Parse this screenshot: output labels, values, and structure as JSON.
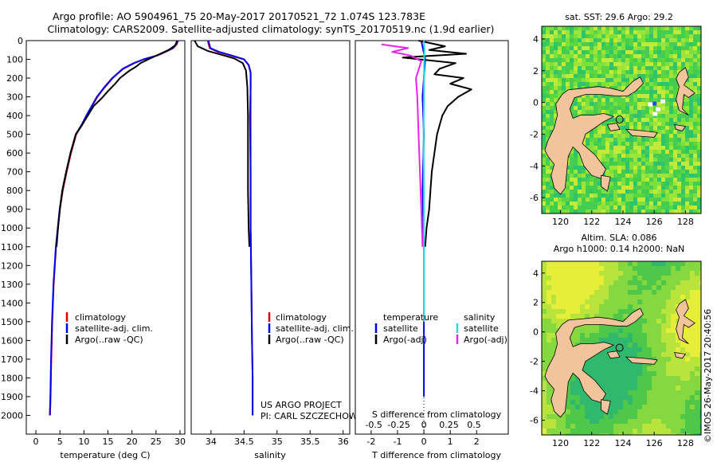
{
  "header": {
    "line1": "Argo profile: AO 5904961_75 20-May-2017 20170521_72 1.074S 123.783E",
    "line2": "Climatology: CARS2009. Satellite-adjusted climatology: synTS_20170519.nc (1.9d earlier)"
  },
  "colors": {
    "climatology": "#dd0000",
    "satellite": "#0000ee",
    "argo": "#000000",
    "salinity_satellite": "#22dddd",
    "salinity_argo": "#ee22ee",
    "land": "#f2c49c"
  },
  "chart_data": [
    {
      "id": "temperature",
      "type": "line",
      "xlabel": "temperature (deg C)",
      "ylabel": "",
      "xlim": [
        -2,
        31
      ],
      "ylim": [
        2100,
        0
      ],
      "xticks": [
        0,
        5,
        10,
        15,
        20,
        25,
        30
      ],
      "yticks": [
        0,
        100,
        200,
        300,
        400,
        500,
        600,
        700,
        800,
        900,
        1000,
        1100,
        1200,
        1300,
        1400,
        1500,
        1600,
        1700,
        1800,
        1900,
        2000
      ],
      "legend": [
        "climatology",
        "satellite-adj. clim.",
        "Argo(..raw -QC)"
      ],
      "series": [
        {
          "name": "climatology",
          "color": "#dd0000",
          "x": [
            29.6,
            29.3,
            28.6,
            27.0,
            25.2,
            22.5,
            20.5,
            18.2,
            16.0,
            14.3,
            12.8,
            11.7,
            10.6,
            9.6,
            8.4,
            7.3,
            6.4,
            5.6,
            5.0,
            4.6,
            4.2,
            3.7,
            3.4,
            3.2,
            3.05,
            2.95
          ],
          "y": [
            0,
            20,
            40,
            60,
            80,
            100,
            120,
            150,
            200,
            250,
            300,
            350,
            400,
            450,
            500,
            600,
            700,
            800,
            900,
            1000,
            1100,
            1300,
            1500,
            1700,
            1900,
            2000
          ]
        },
        {
          "name": "satellite-adj. clim.",
          "color": "#0000ee",
          "x": [
            29.5,
            29.2,
            28.5,
            26.9,
            25.1,
            22.4,
            20.4,
            18.1,
            15.9,
            14.2,
            12.7,
            11.6,
            10.5,
            9.5,
            8.3,
            7.2,
            6.3,
            5.5,
            4.95,
            4.55,
            4.15,
            3.65,
            3.35,
            3.15,
            3.0,
            2.9
          ],
          "y": [
            0,
            20,
            40,
            60,
            80,
            100,
            120,
            150,
            200,
            250,
            300,
            350,
            400,
            450,
            500,
            600,
            700,
            800,
            900,
            1000,
            1100,
            1300,
            1500,
            1700,
            1900,
            2000
          ]
        },
        {
          "name": "Argo(..raw -QC)",
          "color": "#000000",
          "x": [
            29.4,
            29.0,
            27.6,
            25.5,
            23.4,
            21.8,
            20.8,
            19.5,
            17.5,
            16.5,
            15.0,
            13.6,
            12.0,
            10.8,
            9.6,
            8.3,
            7.2,
            6.3,
            5.5,
            5.0,
            4.6,
            4.3
          ],
          "y": [
            0,
            25,
            50,
            75,
            100,
            120,
            140,
            160,
            200,
            230,
            270,
            310,
            350,
            400,
            450,
            500,
            600,
            700,
            800,
            900,
            1000,
            1100
          ]
        }
      ]
    },
    {
      "id": "salinity",
      "type": "line",
      "xlabel": "salinity",
      "xlim": [
        33.7,
        36.1
      ],
      "ylim": [
        2100,
        0
      ],
      "xticks": [
        34,
        34.5,
        35,
        35.5,
        36
      ],
      "legend": [
        "climatology",
        "satellite-adj. clim.",
        "Argo(..raw -QC)"
      ],
      "series": [
        {
          "name": "climatology",
          "color": "#dd0000",
          "x": [
            33.95,
            33.98,
            34.1,
            34.3,
            34.5,
            34.57,
            34.6,
            34.6,
            34.6,
            34.6,
            34.6,
            34.61,
            34.62,
            34.63,
            34.63
          ],
          "y": [
            0,
            40,
            60,
            80,
            100,
            130,
            170,
            250,
            400,
            700,
            1000,
            1300,
            1600,
            1800,
            2000
          ]
        },
        {
          "name": "satellite-adj. clim.",
          "color": "#0000ee",
          "x": [
            33.96,
            33.99,
            34.12,
            34.32,
            34.5,
            34.57,
            34.6,
            34.6,
            34.59,
            34.6,
            34.6,
            34.61,
            34.62,
            34.63,
            34.63
          ],
          "y": [
            0,
            40,
            60,
            80,
            100,
            130,
            170,
            250,
            400,
            700,
            1000,
            1300,
            1600,
            1800,
            2000
          ]
        },
        {
          "name": "Argo(..raw -QC)",
          "color": "#000000",
          "x": [
            33.75,
            33.8,
            33.95,
            34.15,
            34.35,
            34.48,
            34.53,
            34.55,
            34.56,
            34.56,
            34.56,
            34.57,
            34.58
          ],
          "y": [
            0,
            30,
            55,
            75,
            95,
            120,
            160,
            250,
            400,
            600,
            800,
            1000,
            1100
          ]
        }
      ]
    },
    {
      "id": "difference",
      "type": "line",
      "xlabel_top": "S difference from climatology",
      "xlabel": "T difference from climatology",
      "xlim": [
        -2.6,
        3.2
      ],
      "ylim": [
        2100,
        0
      ],
      "xticks": [
        -2,
        -1,
        0,
        1,
        2
      ],
      "sticks": [
        "-0.5",
        "-0.25",
        "0",
        "0.25",
        "0.5"
      ],
      "legend_temperature_title": "temperature",
      "legend_salinity_title": "salinity",
      "legend_temperature": [
        "satellite",
        "Argo(-adj)"
      ],
      "legend_salinity": [
        "satellite",
        "Argo(-adj)"
      ],
      "series": [
        {
          "name": "T satellite",
          "color": "#0000ee",
          "x": [
            -0.1,
            0.05,
            -0.05,
            0.0,
            -0.05,
            0.0,
            0.0,
            0.0,
            0.0,
            0.0
          ],
          "y": [
            0,
            100,
            300,
            500,
            800,
            1100,
            1300,
            1500,
            1700,
            1900
          ]
        },
        {
          "name": "T Argo(-adj)",
          "color": "#000000",
          "x": [
            -0.2,
            0.8,
            0.2,
            1.6,
            -0.8,
            1.2,
            0.6,
            0.4,
            1.5,
            1.0,
            1.8,
            1.3,
            0.9,
            0.7,
            0.5,
            0.4,
            0.3,
            0.25,
            0.2,
            0.1,
            0.05
          ],
          "y": [
            0,
            30,
            50,
            70,
            90,
            120,
            150,
            180,
            200,
            230,
            260,
            300,
            350,
            400,
            500,
            600,
            700,
            800,
            900,
            1000,
            1100
          ]
        },
        {
          "name": "S satellite",
          "color": "#22dddd",
          "x": [
            0.0,
            0.02,
            0.01,
            0.0,
            -0.01,
            0.0,
            0.0,
            0.0,
            0.0
          ],
          "y": [
            0,
            50,
            100,
            300,
            500,
            800,
            1100,
            1400,
            1500
          ]
        },
        {
          "name": "S Argo(-adj)",
          "color": "#ee22ee",
          "x": [
            -1.6,
            -0.6,
            -1.2,
            -0.5,
            -0.1,
            -0.3,
            -0.25,
            -0.2,
            -0.15,
            -0.1,
            -0.05
          ],
          "y": [
            20,
            40,
            60,
            80,
            110,
            200,
            300,
            500,
            700,
            900,
            1100
          ]
        }
      ]
    },
    {
      "id": "sst_map",
      "type": "heatmap",
      "title": "sat. SST: 29.6 Argo: 29.2",
      "xticks": [
        120,
        122,
        124,
        126,
        128
      ],
      "yticks": [
        4,
        2,
        0,
        -2,
        -4,
        -6
      ],
      "xlim": [
        118.8,
        129.0
      ],
      "ylim": [
        -7,
        4.8
      ],
      "marker": {
        "lon": 123.783,
        "lat": -1.074
      }
    },
    {
      "id": "sla_map",
      "type": "heatmap",
      "title": "Altim. SLA: 0.086",
      "subtitle": "Argo h1000: 0.14 h2000: NaN",
      "xticks": [
        120,
        122,
        124,
        126,
        128
      ],
      "yticks": [
        4,
        2,
        0,
        -2,
        -4,
        -6
      ],
      "xlim": [
        118.8,
        129.0
      ],
      "ylim": [
        -7,
        4.8
      ],
      "marker": {
        "lon": 123.783,
        "lat": -1.074
      }
    }
  ],
  "project": {
    "line1": "US ARGO PROJECT",
    "line2": "PI: CARL SZCZECHOWSKI"
  },
  "credit": "©IMOS 26-May-2017 20:40:56"
}
